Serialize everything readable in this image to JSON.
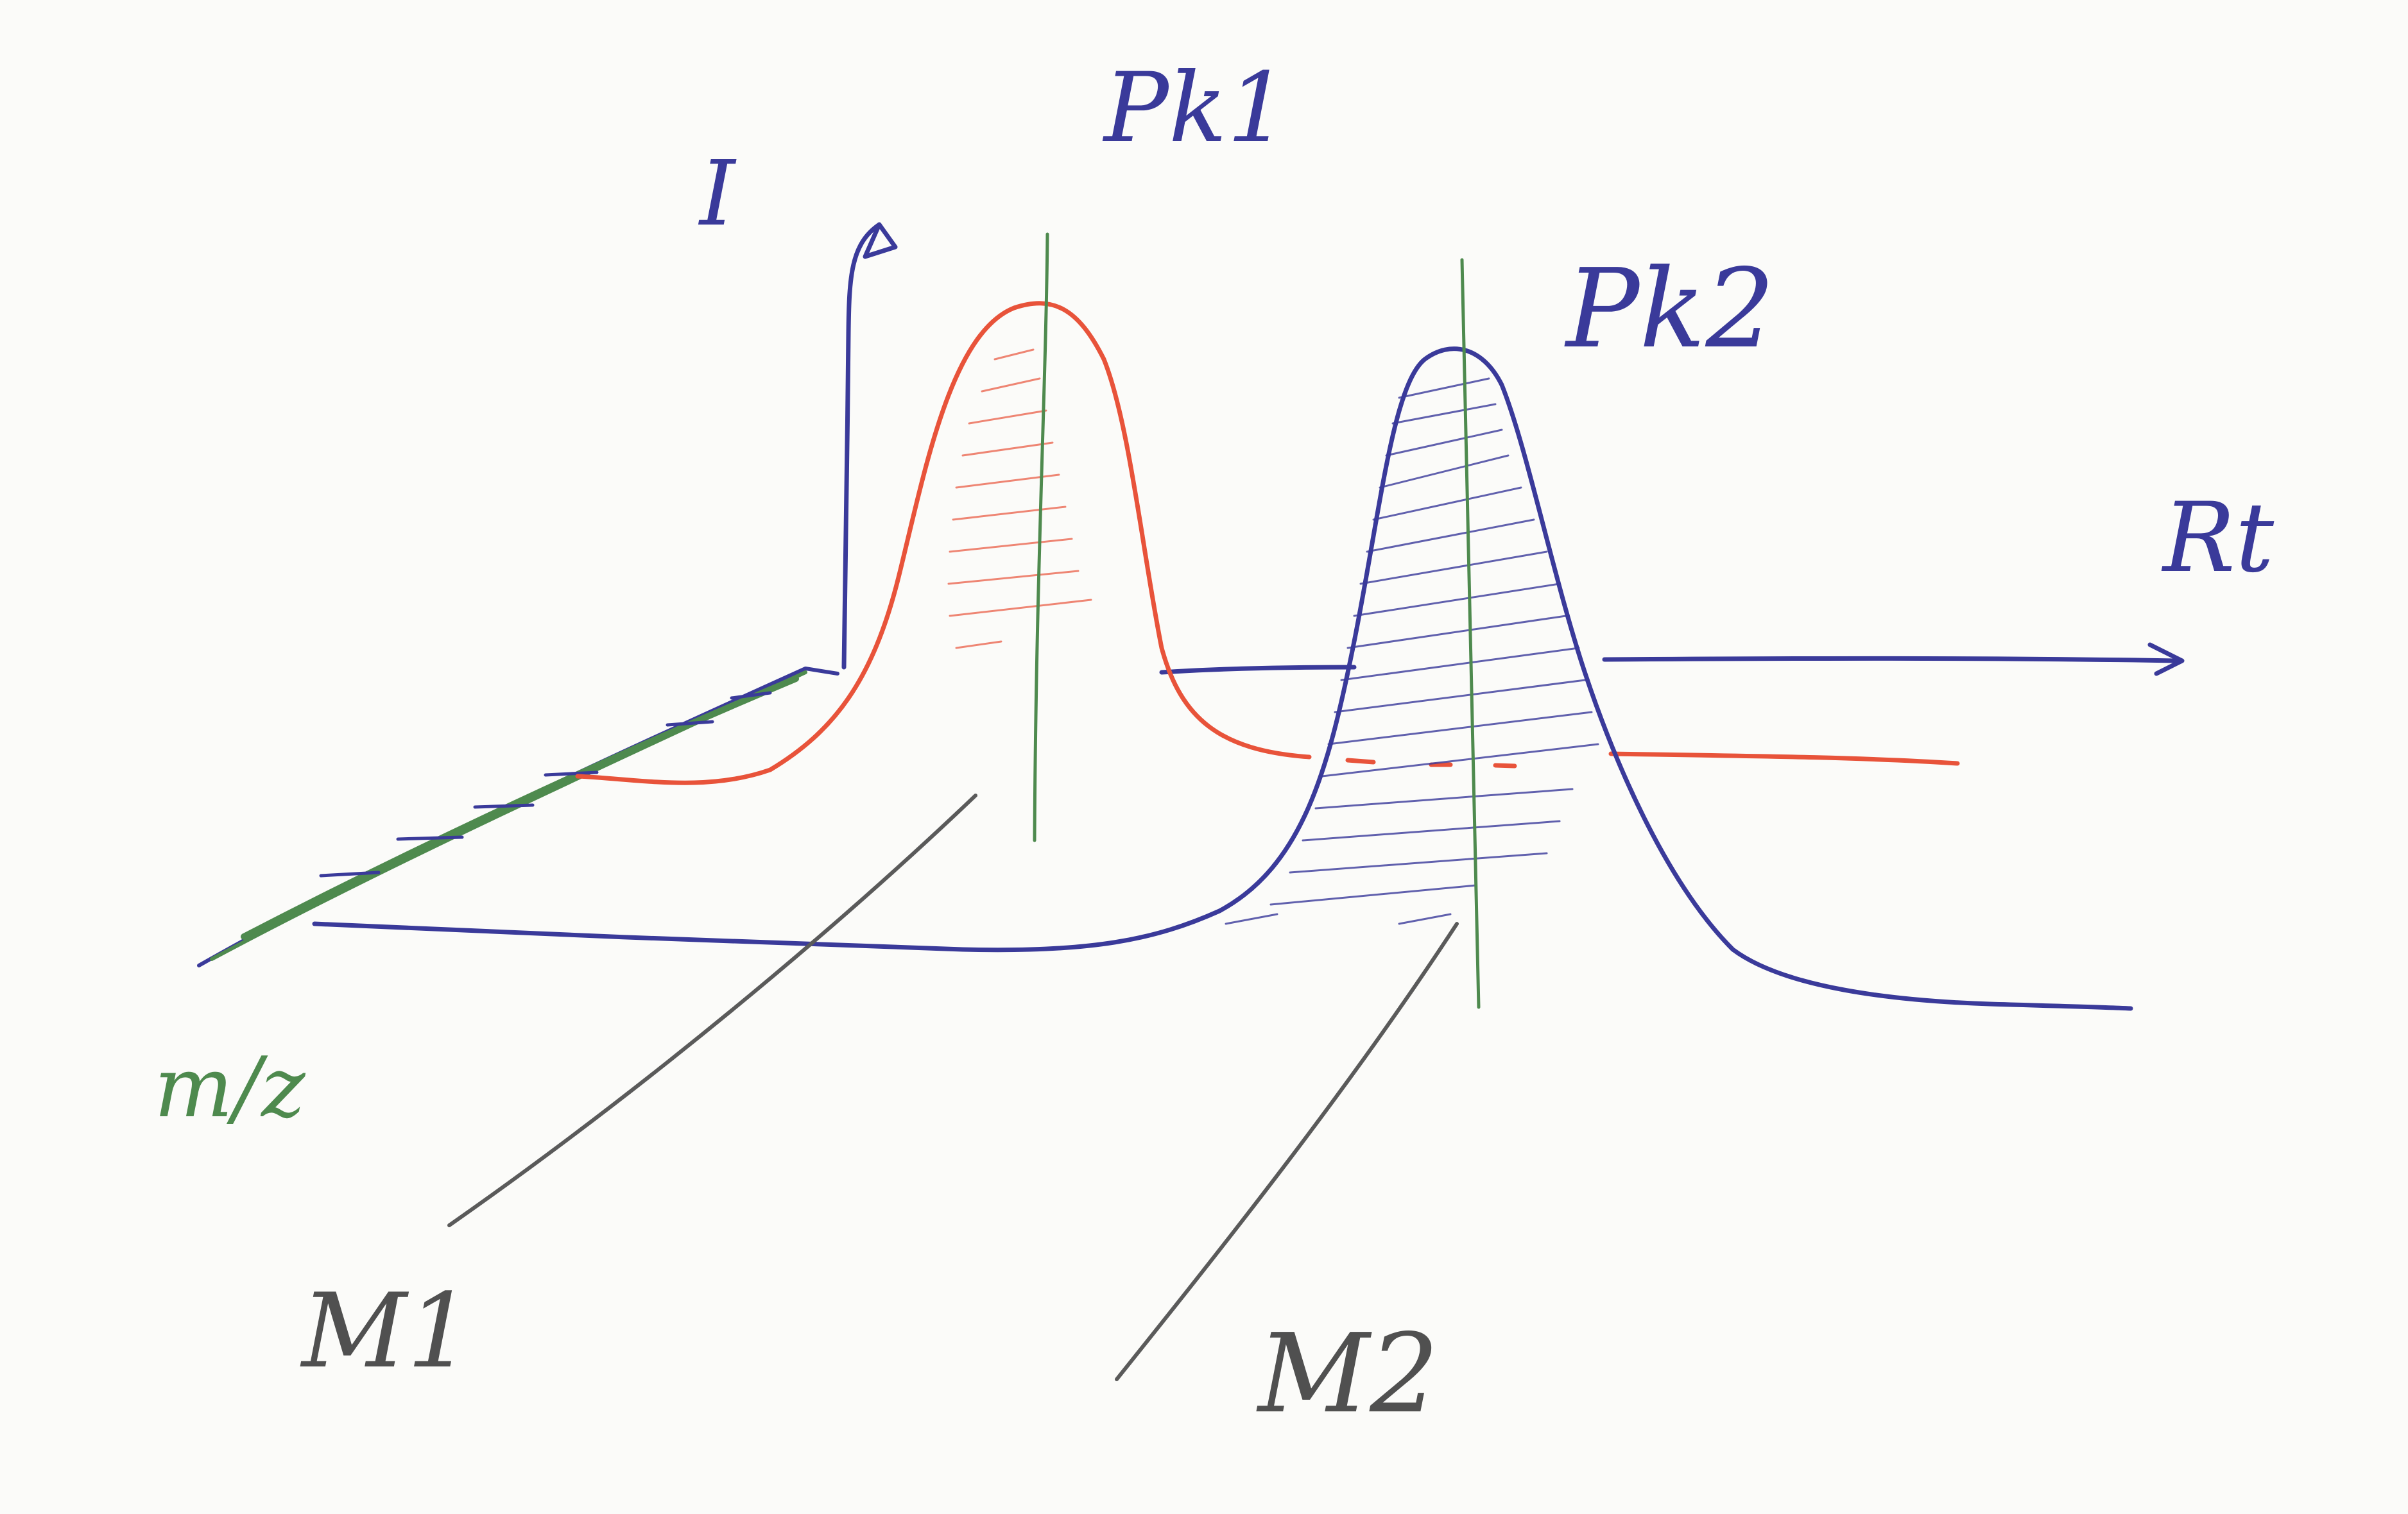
{
  "labels": {
    "intensity_axis": "I",
    "retention_axis": "Rt",
    "mz_axis": "m/z",
    "peak1": "Pk1",
    "peak2": "Pk2",
    "mass1": "M1",
    "mass2": "M2"
  },
  "colors": {
    "paper": "#fbfbf9",
    "blue_ink": "#3a3a9a",
    "red_ink": "#e8533a",
    "green_ink": "#4e8a4e",
    "black_ink": "#5a5a5a"
  }
}
